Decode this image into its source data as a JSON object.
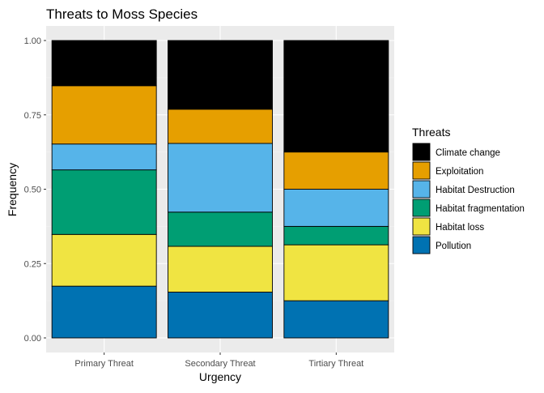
{
  "chart_data": {
    "type": "bar",
    "stacked": true,
    "title": "Threats to Moss Species",
    "xlabel": "Urgency",
    "ylabel": "Frequency",
    "ylim": [
      0,
      1
    ],
    "yticks": [
      "0.00",
      "0.25",
      "0.50",
      "0.75",
      "1.00"
    ],
    "ytick_values": [
      0,
      0.25,
      0.5,
      0.75,
      1.0
    ],
    "grid": true,
    "legend_title": "Threats",
    "legend_position": "right",
    "categories": [
      "Primary Threat",
      "Secondary Threat",
      "Tirtiary Threat"
    ],
    "series": [
      {
        "name": "Pollution",
        "color": "#0072B2",
        "values": [
          0.174,
          0.154,
          0.125
        ]
      },
      {
        "name": "Habitat loss",
        "color": "#F0E442",
        "values": [
          0.174,
          0.154,
          0.188
        ]
      },
      {
        "name": "Habitat fragmentation",
        "color": "#009E73",
        "values": [
          0.217,
          0.115,
          0.062
        ]
      },
      {
        "name": "Habitat Destruction",
        "color": "#56B4E9",
        "values": [
          0.087,
          0.231,
          0.125
        ]
      },
      {
        "name": "Exploitation",
        "color": "#E69F00",
        "values": [
          0.196,
          0.115,
          0.125
        ]
      },
      {
        "name": "Climate change",
        "color": "#000000",
        "values": [
          0.152,
          0.231,
          0.375
        ]
      }
    ]
  }
}
